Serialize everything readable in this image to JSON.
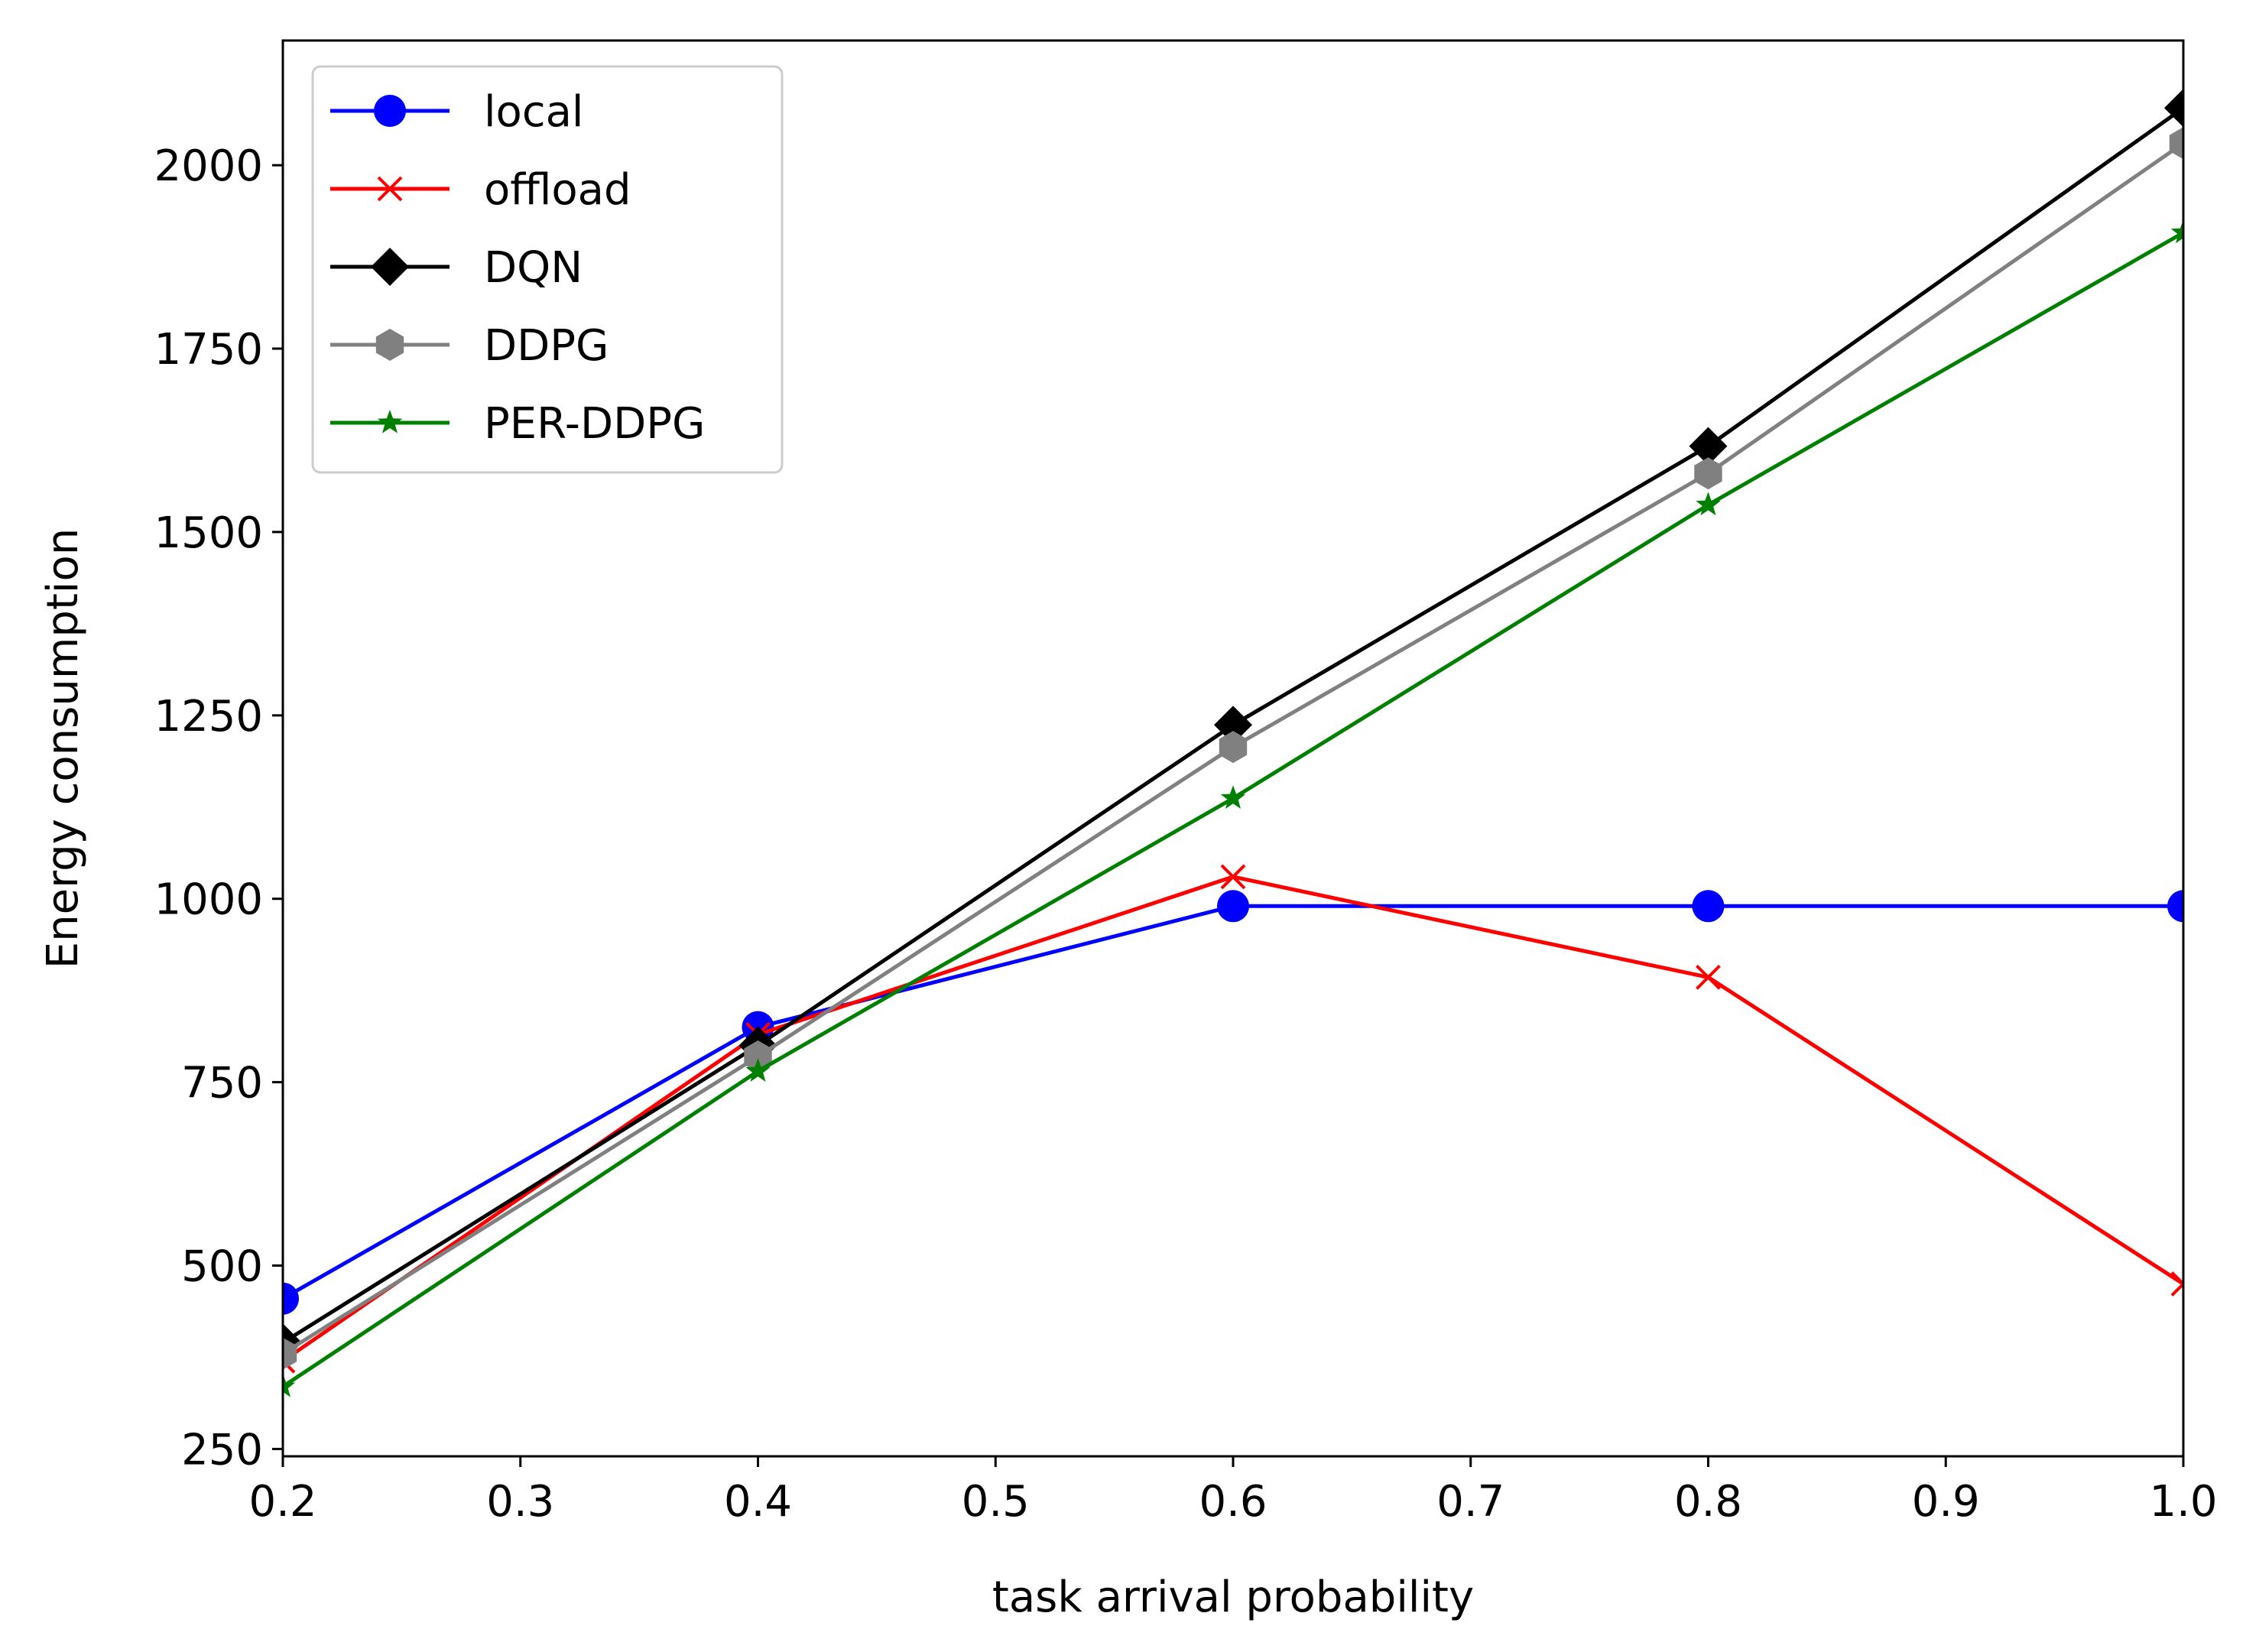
{
  "chart_data": {
    "type": "line",
    "title": "",
    "xlabel": "task arrival probability",
    "ylabel": "Energy consumption",
    "x": [
      0.2,
      0.4,
      0.6,
      0.8,
      1.0
    ],
    "xlim": [
      0.2,
      1.0
    ],
    "ylim": [
      240,
      2170
    ],
    "xticks": [
      0.2,
      0.3,
      0.4,
      0.5,
      0.6,
      0.7,
      0.8,
      0.9,
      1.0
    ],
    "xtick_labels": [
      "0.2",
      "0.3",
      "0.4",
      "0.5",
      "0.6",
      "0.7",
      "0.8",
      "0.9",
      "1.0"
    ],
    "yticks": [
      250,
      500,
      750,
      1000,
      1250,
      1500,
      1750,
      2000
    ],
    "ytick_labels": [
      "250",
      "500",
      "750",
      "1000",
      "1250",
      "1500",
      "1750",
      "2000"
    ],
    "grid": false,
    "legend_position": "upper-left",
    "series": [
      {
        "name": "local",
        "color": "#0000ff",
        "marker": "circle",
        "values": [
          455,
          825,
          990,
          990,
          990
        ]
      },
      {
        "name": "offload",
        "color": "#ff0000",
        "marker": "x",
        "values": [
          370,
          815,
          1030,
          893,
          475
        ]
      },
      {
        "name": "DQN",
        "color": "#000000",
        "marker": "diamond",
        "values": [
          395,
          800,
          1237,
          1617,
          2078
        ]
      },
      {
        "name": "DDPG",
        "color": "#808080",
        "marker": "hexagon",
        "values": [
          380,
          785,
          1207,
          1580,
          2030
        ]
      },
      {
        "name": "PER-DDPG",
        "color": "#008000",
        "marker": "star",
        "values": [
          335,
          765,
          1137,
          1537,
          1908
        ]
      }
    ]
  }
}
